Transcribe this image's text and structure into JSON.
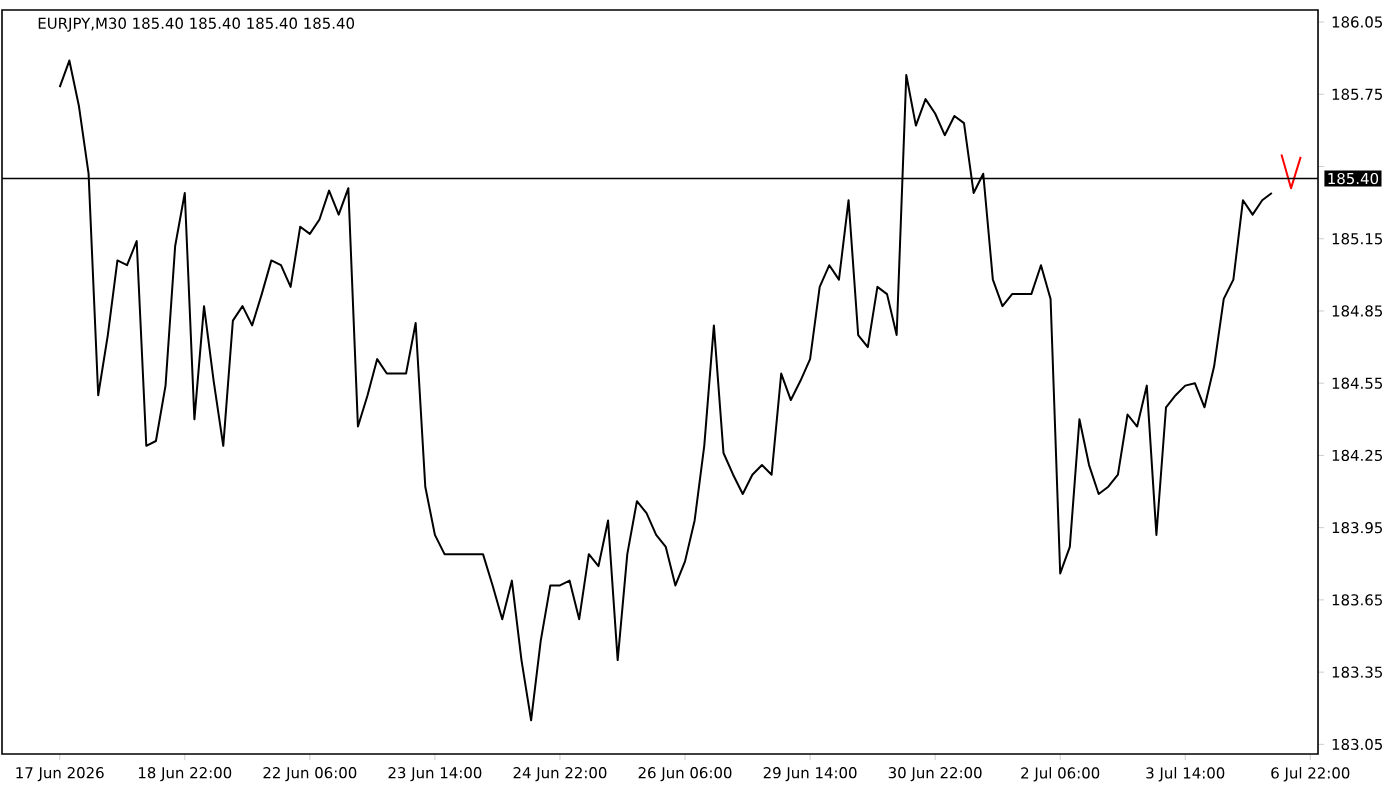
{
  "chart_data": {
    "type": "line",
    "title": "EURJPY,M30  185.40 185.40 185.40 185.40",
    "categories": [
      "17 Jun 2026",
      null,
      null,
      null,
      null,
      null,
      null,
      null,
      null,
      null,
      null,
      null,
      null,
      "18 Jun 22:00",
      null,
      null,
      null,
      null,
      null,
      null,
      null,
      null,
      null,
      null,
      null,
      null,
      "22 Jun 06:00",
      null,
      null,
      null,
      null,
      null,
      null,
      null,
      null,
      null,
      null,
      null,
      null,
      "23 Jun 14:00",
      null,
      null,
      null,
      null,
      null,
      null,
      null,
      null,
      null,
      null,
      null,
      null,
      "24 Jun 22:00",
      null,
      null,
      null,
      null,
      null,
      null,
      null,
      null,
      null,
      null,
      null,
      null,
      "26 Jun 06:00",
      null,
      null,
      null,
      null,
      null,
      null,
      null,
      null,
      null,
      null,
      null,
      null,
      "29 Jun 14:00",
      null,
      null,
      null,
      null,
      null,
      null,
      null,
      null,
      null,
      null,
      null,
      null,
      "30 Jun 22:00",
      null,
      null,
      null,
      null,
      null,
      null,
      null,
      null,
      null,
      null,
      null,
      null,
      "2 Jul 06:00",
      null,
      null,
      null,
      null,
      null,
      null,
      null,
      null,
      null,
      null,
      null,
      null,
      "3 Jul 14:00",
      null,
      null,
      null,
      null,
      null,
      null,
      null,
      null,
      null,
      null,
      null,
      null,
      "6 Jul 22:00"
    ],
    "ylim": [
      183.01,
      186.1
    ],
    "yticks": [
      183.05,
      183.35,
      183.65,
      183.95,
      184.25,
      184.55,
      184.85,
      185.15,
      {
        "value": 185.45,
        "label": null
      },
      185.75,
      186.05
    ],
    "ref_lines": [
      {
        "axis": "y",
        "value": 185.4,
        "label": "185.40",
        "color": "#000000"
      }
    ],
    "series": [
      {
        "color": "#000000",
        "values": [
          185.78,
          185.89,
          185.7,
          185.42,
          184.5,
          184.75,
          185.06,
          185.04,
          185.14,
          184.29,
          184.31,
          184.54,
          185.12,
          185.34,
          184.4,
          184.87,
          184.56,
          184.29,
          184.81,
          184.87,
          184.79,
          184.92,
          185.06,
          185.04,
          184.95,
          185.2,
          185.17,
          185.23,
          185.35,
          185.25,
          185.36,
          184.37,
          184.5,
          184.65,
          184.59,
          184.59,
          184.59,
          184.8,
          184.12,
          183.92,
          183.84,
          183.84,
          183.84,
          183.84,
          183.84,
          183.71,
          183.57,
          183.73,
          183.4,
          183.15,
          183.48,
          183.71,
          183.71,
          183.73,
          183.57,
          183.84,
          183.79,
          183.98,
          183.4,
          183.84,
          184.06,
          184.01,
          183.92,
          183.87,
          183.71,
          183.81,
          183.98,
          184.29,
          184.79,
          184.26,
          184.17,
          184.09,
          184.17,
          184.21,
          184.17,
          184.59,
          184.48,
          184.56,
          184.65,
          184.95,
          185.04,
          184.98,
          185.31,
          184.75,
          184.7,
          184.95,
          184.92,
          184.75,
          185.83,
          185.62,
          185.73,
          185.67,
          185.58,
          185.66,
          185.63,
          185.34,
          185.42,
          184.98,
          184.87,
          184.92,
          184.92,
          184.92,
          185.04,
          184.9,
          183.76,
          183.87,
          184.4,
          184.21,
          184.09,
          184.12,
          184.17,
          184.42,
          184.37,
          184.54,
          183.92,
          184.45,
          184.5,
          184.54,
          184.55,
          184.45,
          184.62,
          184.9,
          184.98,
          185.31,
          185.25,
          185.31,
          185.34,
          null,
          null,
          null,
          null
        ]
      },
      {
        "color": "#ff0000",
        "values": [
          null,
          null,
          null,
          null,
          null,
          null,
          null,
          null,
          null,
          null,
          null,
          null,
          null,
          null,
          null,
          null,
          null,
          null,
          null,
          null,
          null,
          null,
          null,
          null,
          null,
          null,
          null,
          null,
          null,
          null,
          null,
          null,
          null,
          null,
          null,
          null,
          null,
          null,
          null,
          null,
          null,
          null,
          null,
          null,
          null,
          null,
          null,
          null,
          null,
          null,
          null,
          null,
          null,
          null,
          null,
          null,
          null,
          null,
          null,
          null,
          null,
          null,
          null,
          null,
          null,
          null,
          null,
          null,
          null,
          null,
          null,
          null,
          null,
          null,
          null,
          null,
          null,
          null,
          null,
          null,
          null,
          null,
          null,
          null,
          null,
          null,
          null,
          null,
          null,
          null,
          null,
          null,
          null,
          null,
          null,
          null,
          null,
          null,
          null,
          null,
          null,
          null,
          null,
          null,
          null,
          null,
          null,
          null,
          null,
          null,
          null,
          null,
          null,
          null,
          null,
          null,
          null,
          null,
          null,
          null,
          null,
          null,
          null,
          null,
          null,
          null,
          null,
          185.5,
          185.36,
          185.49,
          null
        ]
      }
    ]
  }
}
